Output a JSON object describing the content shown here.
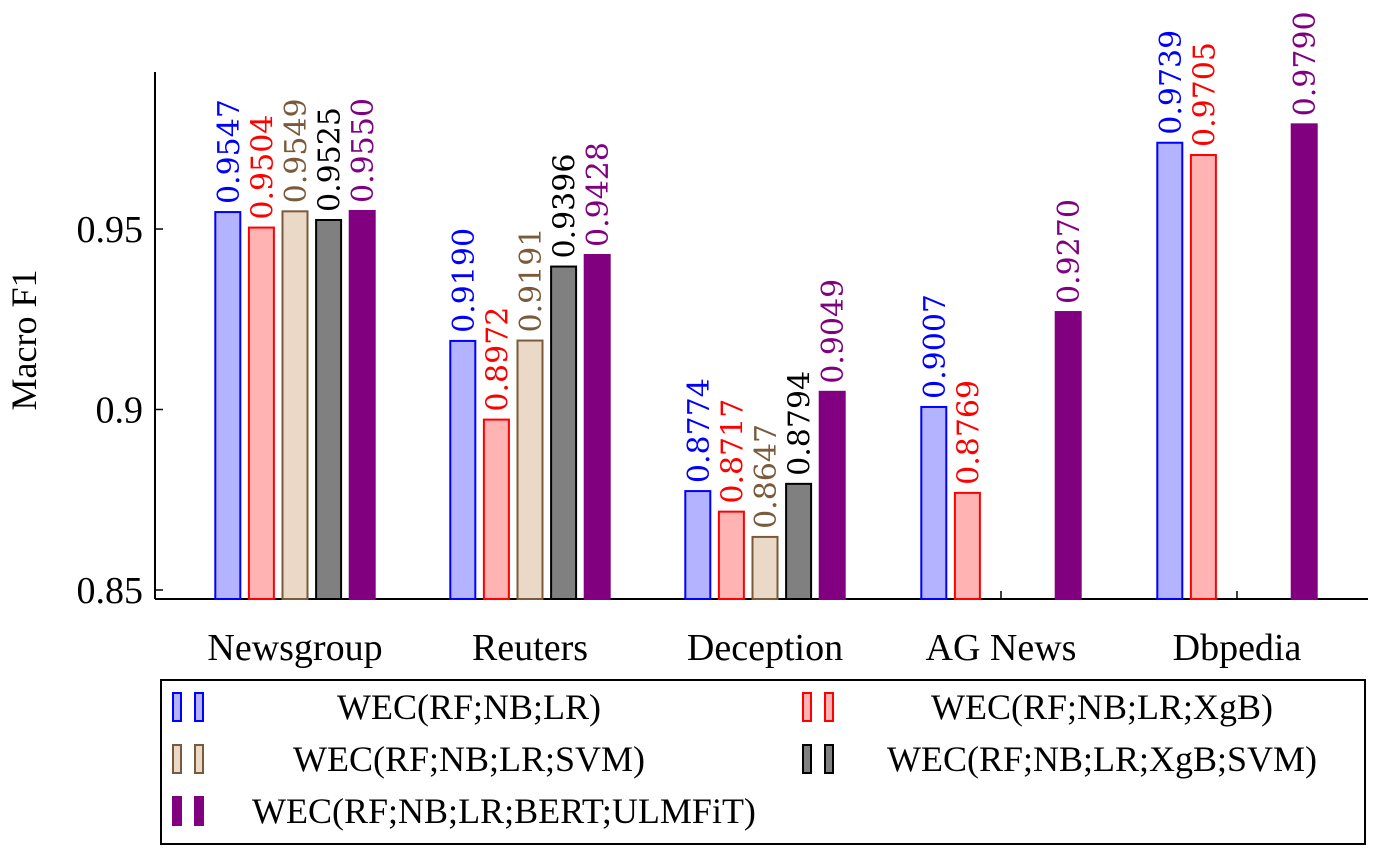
{
  "chart_data": {
    "type": "bar",
    "ylabel": "Macro F1",
    "ylim": [
      0.8475,
      0.9935
    ],
    "yticks": [
      0.85,
      0.9,
      0.95
    ],
    "ytick_labels": [
      "0.85",
      "0.9",
      "0.95"
    ],
    "categories": [
      "Newsgroup",
      "Reuters",
      "Deception",
      "AG News",
      "Dbpedia"
    ],
    "series": [
      {
        "name": "WEC(RF;NB;LR)",
        "color": "#0000ff",
        "fill": "#b3b3ff",
        "values": [
          0.9547,
          0.919,
          0.8774,
          0.9007,
          0.9739
        ],
        "labels": [
          "0.9547",
          "0.9190",
          "0.8774",
          "0.9007",
          "0.9739"
        ]
      },
      {
        "name": "WEC(RF;NB;LR;XgB)",
        "color": "#ff0000",
        "fill": "#ffb3b3",
        "values": [
          0.9504,
          0.8972,
          0.8717,
          0.8769,
          0.9705
        ],
        "labels": [
          "0.9504",
          "0.8972",
          "0.8717",
          "0.8769",
          "0.9705"
        ]
      },
      {
        "name": "WEC(RF;NB;LR;SVM)",
        "color": "#7a5a3a",
        "fill": "#ead9c6",
        "values": [
          0.9549,
          0.9191,
          0.8647,
          null,
          null
        ],
        "labels": [
          "0.9549",
          "0.9191",
          "0.8647",
          null,
          null
        ]
      },
      {
        "name": "WEC(RF;NB;LR;XgB;SVM)",
        "color": "#000000",
        "fill": "#808080",
        "values": [
          0.9525,
          0.9396,
          0.8794,
          null,
          null
        ],
        "labels": [
          "0.9525",
          "0.9396",
          "0.8794",
          null,
          null
        ]
      },
      {
        "name": "WEC(RF;NB;LR;BERT;ULMFiT)",
        "color": "#800080",
        "fill": "#800080",
        "values": [
          0.955,
          0.9428,
          0.9049,
          0.927,
          0.979
        ],
        "labels": [
          "0.9550",
          "0.9428",
          "0.9049",
          "0.9270",
          "0.9790"
        ]
      }
    ],
    "legend_position": "bottom",
    "grid": false
  }
}
